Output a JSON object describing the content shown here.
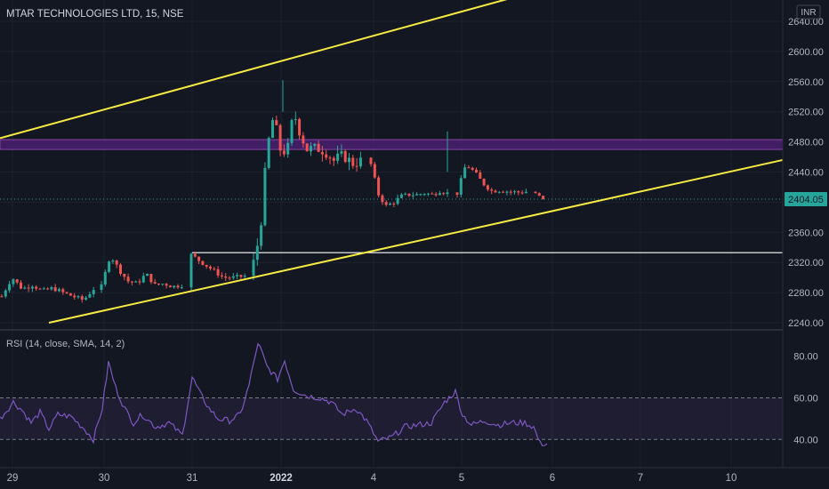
{
  "symbol_title": "MTAR TECHNOLOGIES LTD, 15, NSE",
  "currency": "INR",
  "colors": {
    "background": "#131722",
    "up": "#26a69a",
    "down": "#ef5350",
    "trendline": "#f5eb42",
    "resistance_zone": "#6a1b9a",
    "support_line": "#ffffff",
    "rsi_line": "#7e57c2",
    "last_price_tag": "#26a69a"
  },
  "chart_data": [
    {
      "type": "candlestick",
      "interval": "15",
      "y_ticks": [
        "2640.00",
        "2600.00",
        "2560.00",
        "2520.00",
        "2480.00",
        "2440.00",
        "2400.00",
        "2360.00",
        "2320.00",
        "2280.00",
        "2240.00"
      ],
      "ylim": [
        2240,
        2640
      ],
      "x_ticks": [
        "29",
        "30",
        "31",
        "2022",
        "4",
        "5",
        "6",
        "7",
        "10"
      ],
      "last_price": "2404.05",
      "sessions": [
        {
          "label": "29",
          "open": 2275,
          "high": 2310,
          "low": 2265,
          "close": 2280
        },
        {
          "label": "30",
          "open": 2285,
          "high": 2338,
          "low": 2270,
          "close": 2288
        },
        {
          "label": "31",
          "open": 2290,
          "high": 2335,
          "low": 2285,
          "close": 2305
        },
        {
          "label": "2022",
          "open": 2330,
          "high": 2562,
          "low": 2298,
          "close": 2470
        },
        {
          "label": "4",
          "open": 2455,
          "high": 2465,
          "low": 2390,
          "close": 2410
        },
        {
          "label": "5",
          "open": 2412,
          "high": 2494,
          "low": 2400,
          "close": 2415
        },
        {
          "label": "6",
          "open": 2412,
          "high": 2418,
          "low": 2400,
          "close": 2404.05
        }
      ],
      "drawings": {
        "upper_trendline": [
          {
            "x": "28",
            "y": 2485
          },
          {
            "x": "5",
            "y": 2705
          }
        ],
        "lower_trendline": [
          {
            "x": "29",
            "y": 2240
          },
          {
            "x": "7+",
            "y": 2456
          }
        ],
        "resistance_zone": {
          "from": 2470,
          "to": 2483
        },
        "support_line": 2333
      }
    },
    {
      "type": "line",
      "title": "RSI (14, close, SMA, 14, 2)",
      "y_ticks": [
        "80.00",
        "60.00",
        "40.00"
      ],
      "ylim": [
        35,
        85
      ],
      "band": [
        40,
        60
      ]
    }
  ]
}
